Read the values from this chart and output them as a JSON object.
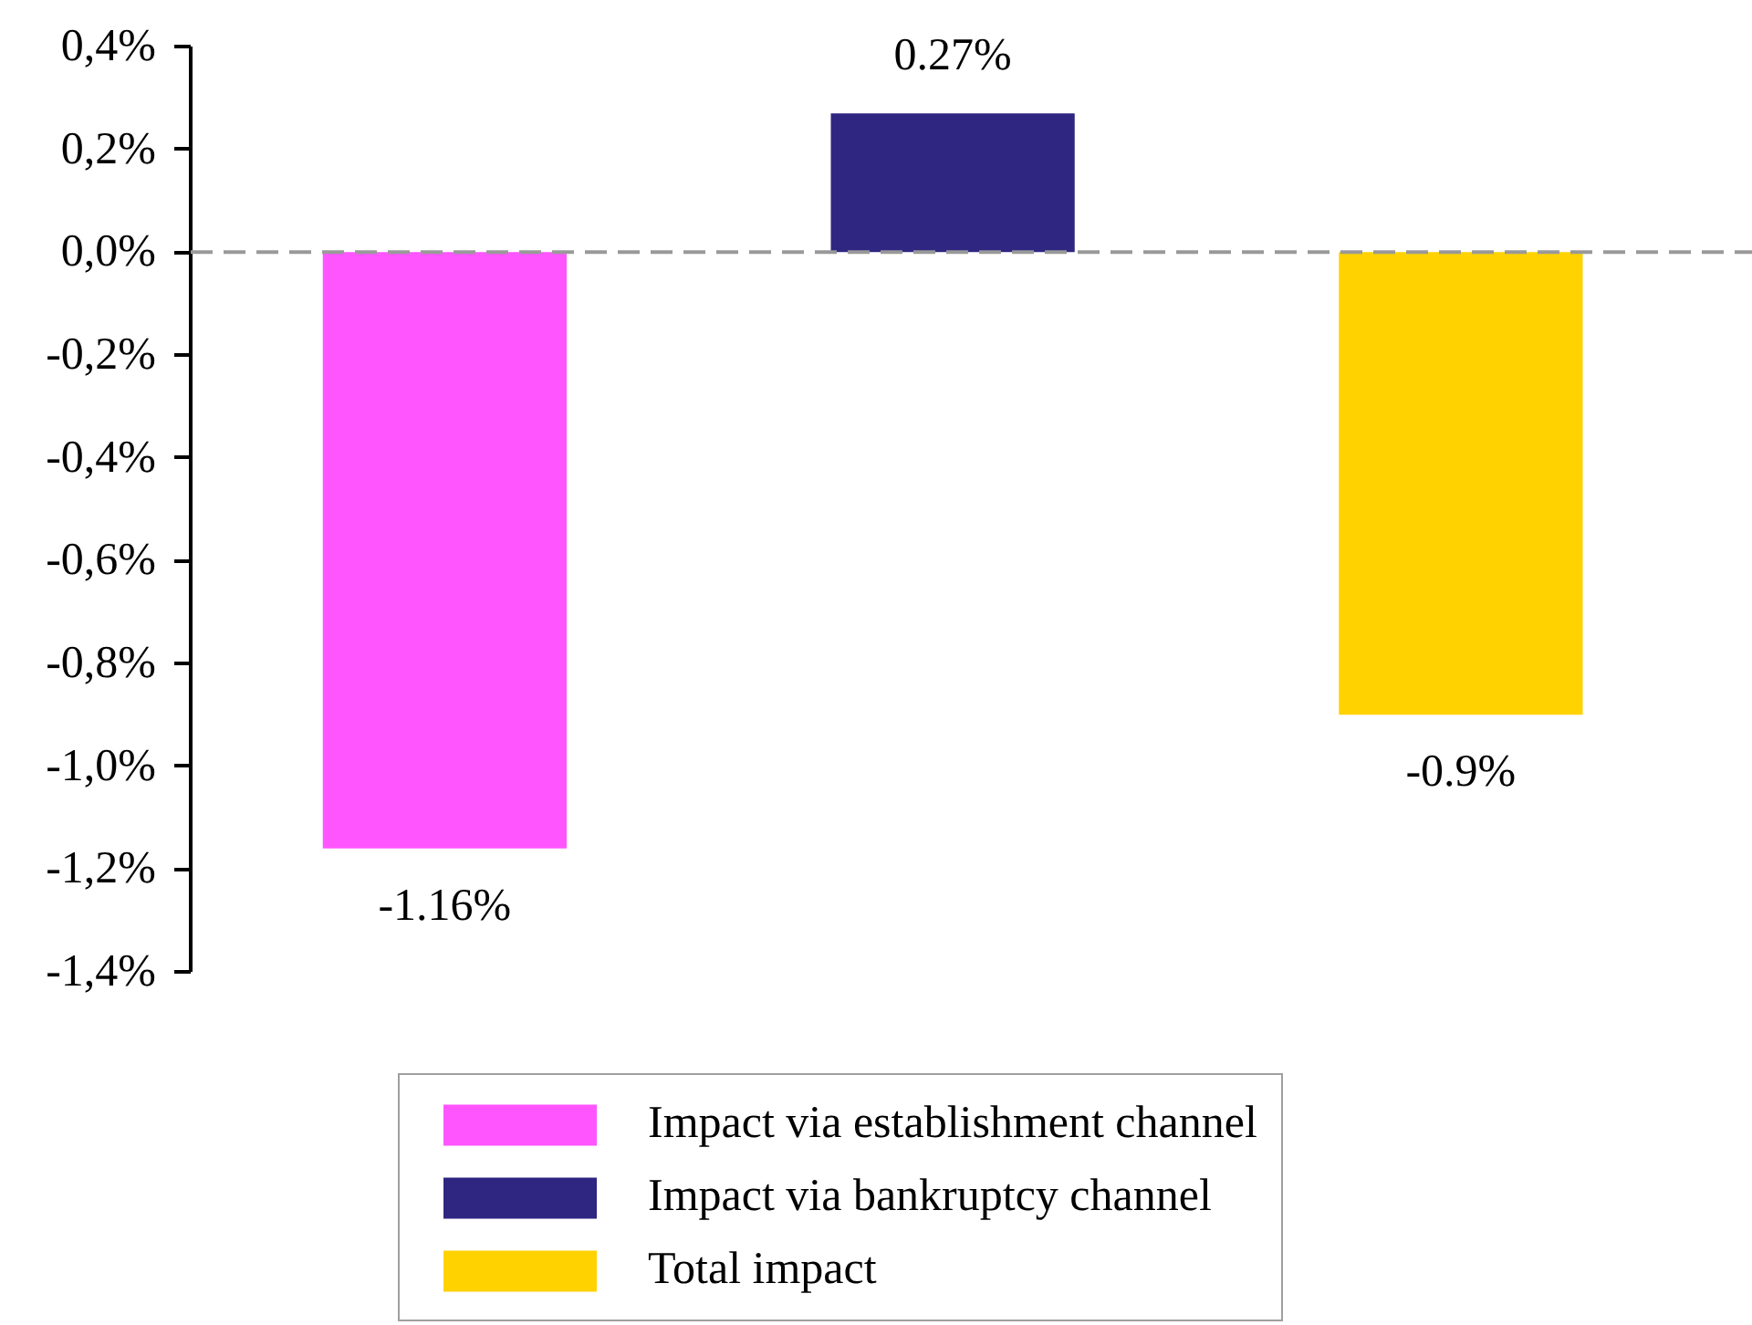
{
  "chart_data": {
    "type": "bar",
    "categories": [
      null,
      null,
      null
    ],
    "series": [
      {
        "name": "Impact via establishment channel",
        "color": "#ff55ff",
        "values": [
          -1.16,
          null,
          null
        ],
        "value_labels": [
          "-1.16%",
          null,
          null
        ]
      },
      {
        "name": "Impact via bankruptcy channel",
        "color": "#2e2680",
        "values": [
          null,
          0.27,
          null
        ],
        "value_labels": [
          null,
          "0.27%",
          null
        ]
      },
      {
        "name": "Total impact",
        "color": "#ffd200",
        "values": [
          null,
          null,
          -0.9
        ],
        "value_labels": [
          null,
          null,
          "-0.9%"
        ]
      }
    ],
    "ylim": [
      -1.4,
      0.4
    ],
    "yticks": [
      {
        "value": 0.4,
        "label": "0,4%"
      },
      {
        "value": 0.2,
        "label": "0,2%"
      },
      {
        "value": 0,
        "label": "0,0%"
      },
      {
        "value": -0.2,
        "label": "-0,2%"
      },
      {
        "value": -0.4,
        "label": "-0,4%"
      },
      {
        "value": -0.6,
        "label": "-0,6%"
      },
      {
        "value": -0.8,
        "label": "-0,8%"
      },
      {
        "value": -1.0,
        "label": "-1,0%"
      },
      {
        "value": -1.2,
        "label": "-1,2%"
      },
      {
        "value": -1.4,
        "label": "-1,4%"
      }
    ],
    "ref_lines": [
      {
        "axis": "y",
        "value": 0,
        "color": "#999999",
        "line_style": "dashed"
      }
    ],
    "legend": "bottom",
    "tick_labels": "y"
  }
}
